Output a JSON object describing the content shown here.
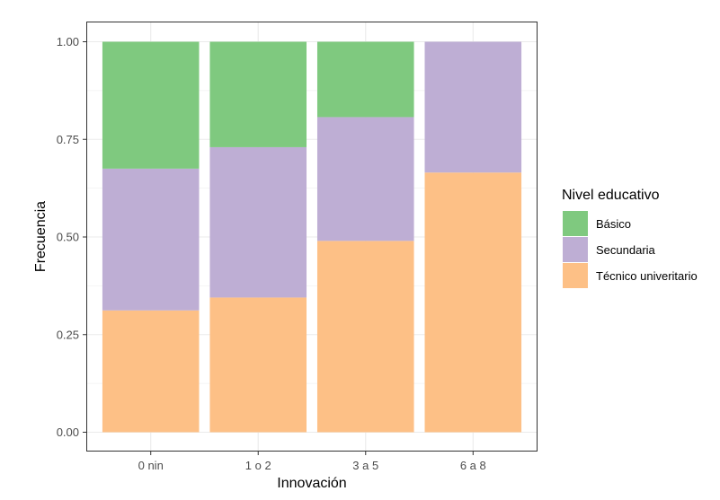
{
  "chart_data": {
    "type": "bar",
    "stacked": true,
    "categories": [
      "0 nin",
      "1 o 2",
      "3 a 5",
      "6 a 8"
    ],
    "series": [
      {
        "name": "Técnico univeritario",
        "color": "#FDC086",
        "values": [
          0.312,
          0.345,
          0.49,
          0.665
        ]
      },
      {
        "name": "Secundaria",
        "color": "#BEAED4",
        "values": [
          0.363,
          0.385,
          0.317,
          0.335
        ]
      },
      {
        "name": "Básico",
        "color": "#7FC97F",
        "values": [
          0.325,
          0.27,
          0.193,
          0.0
        ]
      }
    ],
    "xlabel": "Innovación",
    "ylabel": "Frecuencia",
    "ylim": [
      0,
      1
    ],
    "yticks": [
      "0.00",
      "0.25",
      "0.50",
      "0.75",
      "1.00"
    ],
    "ytick_values": [
      0,
      0.25,
      0.5,
      0.75,
      1.0
    ],
    "grid": true,
    "legend": {
      "title": "Nivel educativo",
      "position": "right",
      "order": [
        "Básico",
        "Secundaria",
        "Técnico univeritario"
      ]
    }
  }
}
